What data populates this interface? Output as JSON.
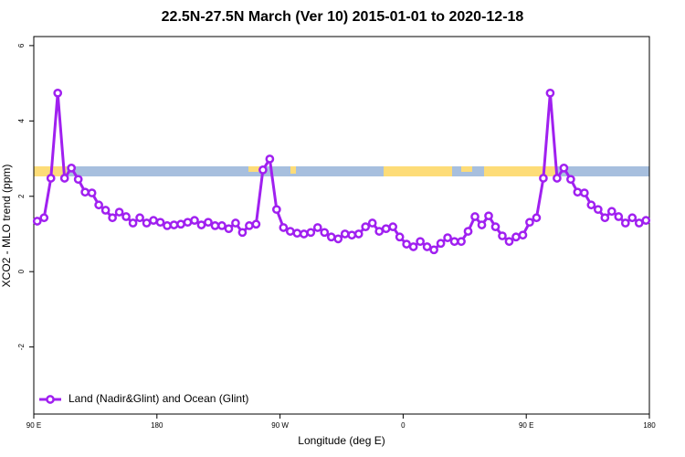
{
  "chart_data": {
    "type": "line",
    "title": "22.5N-27.5N March (Ver 10)   2015-01-01 to 2020-12-18",
    "x_label": "Longitude (deg E)",
    "y_label": "XCO2 - MLO trend (ppm)",
    "xlim": [
      90,
      540
    ],
    "ylim": [
      -3.78,
      6.24
    ],
    "xticks": [
      {
        "value": 90,
        "label": "90 E"
      },
      180,
      {
        "value": 270,
        "label": "90 W"
      },
      {
        "value": 360,
        "label": "0"
      },
      {
        "value": 450,
        "label": "90 E"
      },
      {
        "value": 540,
        "label": "180"
      }
    ],
    "yticks": [
      -2,
      0,
      2,
      4,
      6
    ],
    "legend": "bottomleft",
    "x": [
      92.5,
      97.5,
      102.5,
      107.5,
      112.5,
      117.5,
      122.5,
      127.5,
      132.5,
      137.5,
      142.5,
      147.5,
      152.5,
      157.5,
      162.5,
      167.5,
      172.5,
      177.5,
      182.5,
      187.5,
      192.5,
      197.5,
      202.5,
      207.5,
      212.5,
      217.5,
      222.5,
      227.5,
      232.5,
      237.5,
      242.5,
      247.5,
      252.5,
      257.5,
      262.5,
      267.5,
      272.5,
      277.5,
      282.5,
      287.5,
      292.5,
      297.5,
      302.5,
      307.5,
      312.5,
      317.5,
      322.5,
      327.5,
      332.5,
      337.5,
      342.5,
      347.5,
      352.5,
      357.5,
      362.5,
      367.5,
      372.5,
      377.5,
      382.5,
      387.5,
      392.5,
      397.5,
      402.5,
      407.5,
      412.5,
      417.5,
      422.5,
      427.5,
      432.5,
      437.5,
      442.5,
      447.5,
      452.5,
      457.5,
      462.5,
      467.5,
      472.5,
      477.5,
      482.5,
      487.5,
      492.5,
      497.5,
      502.5,
      507.5,
      512.5,
      517.5,
      522.5,
      527.5,
      532.5,
      537.5
    ],
    "series": [
      {
        "name": "Land (Nadir&Glint) and Ocean (Glint)",
        "color": "#a020f0",
        "values": [
          1.34,
          1.43,
          2.48,
          4.74,
          2.48,
          2.75,
          2.45,
          2.11,
          2.09,
          1.77,
          1.63,
          1.43,
          1.58,
          1.46,
          1.29,
          1.43,
          1.29,
          1.36,
          1.31,
          1.22,
          1.24,
          1.26,
          1.31,
          1.36,
          1.24,
          1.31,
          1.22,
          1.22,
          1.14,
          1.29,
          1.04,
          1.22,
          1.26,
          2.7,
          2.99,
          1.65,
          1.17,
          1.07,
          1.02,
          1.0,
          1.04,
          1.17,
          1.04,
          0.92,
          0.87,
          1.0,
          0.97,
          1.0,
          1.19,
          1.29,
          1.07,
          1.14,
          1.19,
          0.92,
          0.73,
          0.66,
          0.8,
          0.66,
          0.58,
          0.75,
          0.9,
          0.8,
          0.8,
          1.07,
          1.46,
          1.24,
          1.48,
          1.19,
          0.95,
          0.8,
          0.92,
          0.97,
          1.31,
          1.43,
          2.48,
          4.74,
          2.48,
          2.75,
          2.45,
          2.11,
          2.09,
          1.77,
          1.65,
          1.43,
          1.6,
          1.46,
          1.29,
          1.43,
          1.29,
          1.36
        ]
      }
    ]
  }
}
